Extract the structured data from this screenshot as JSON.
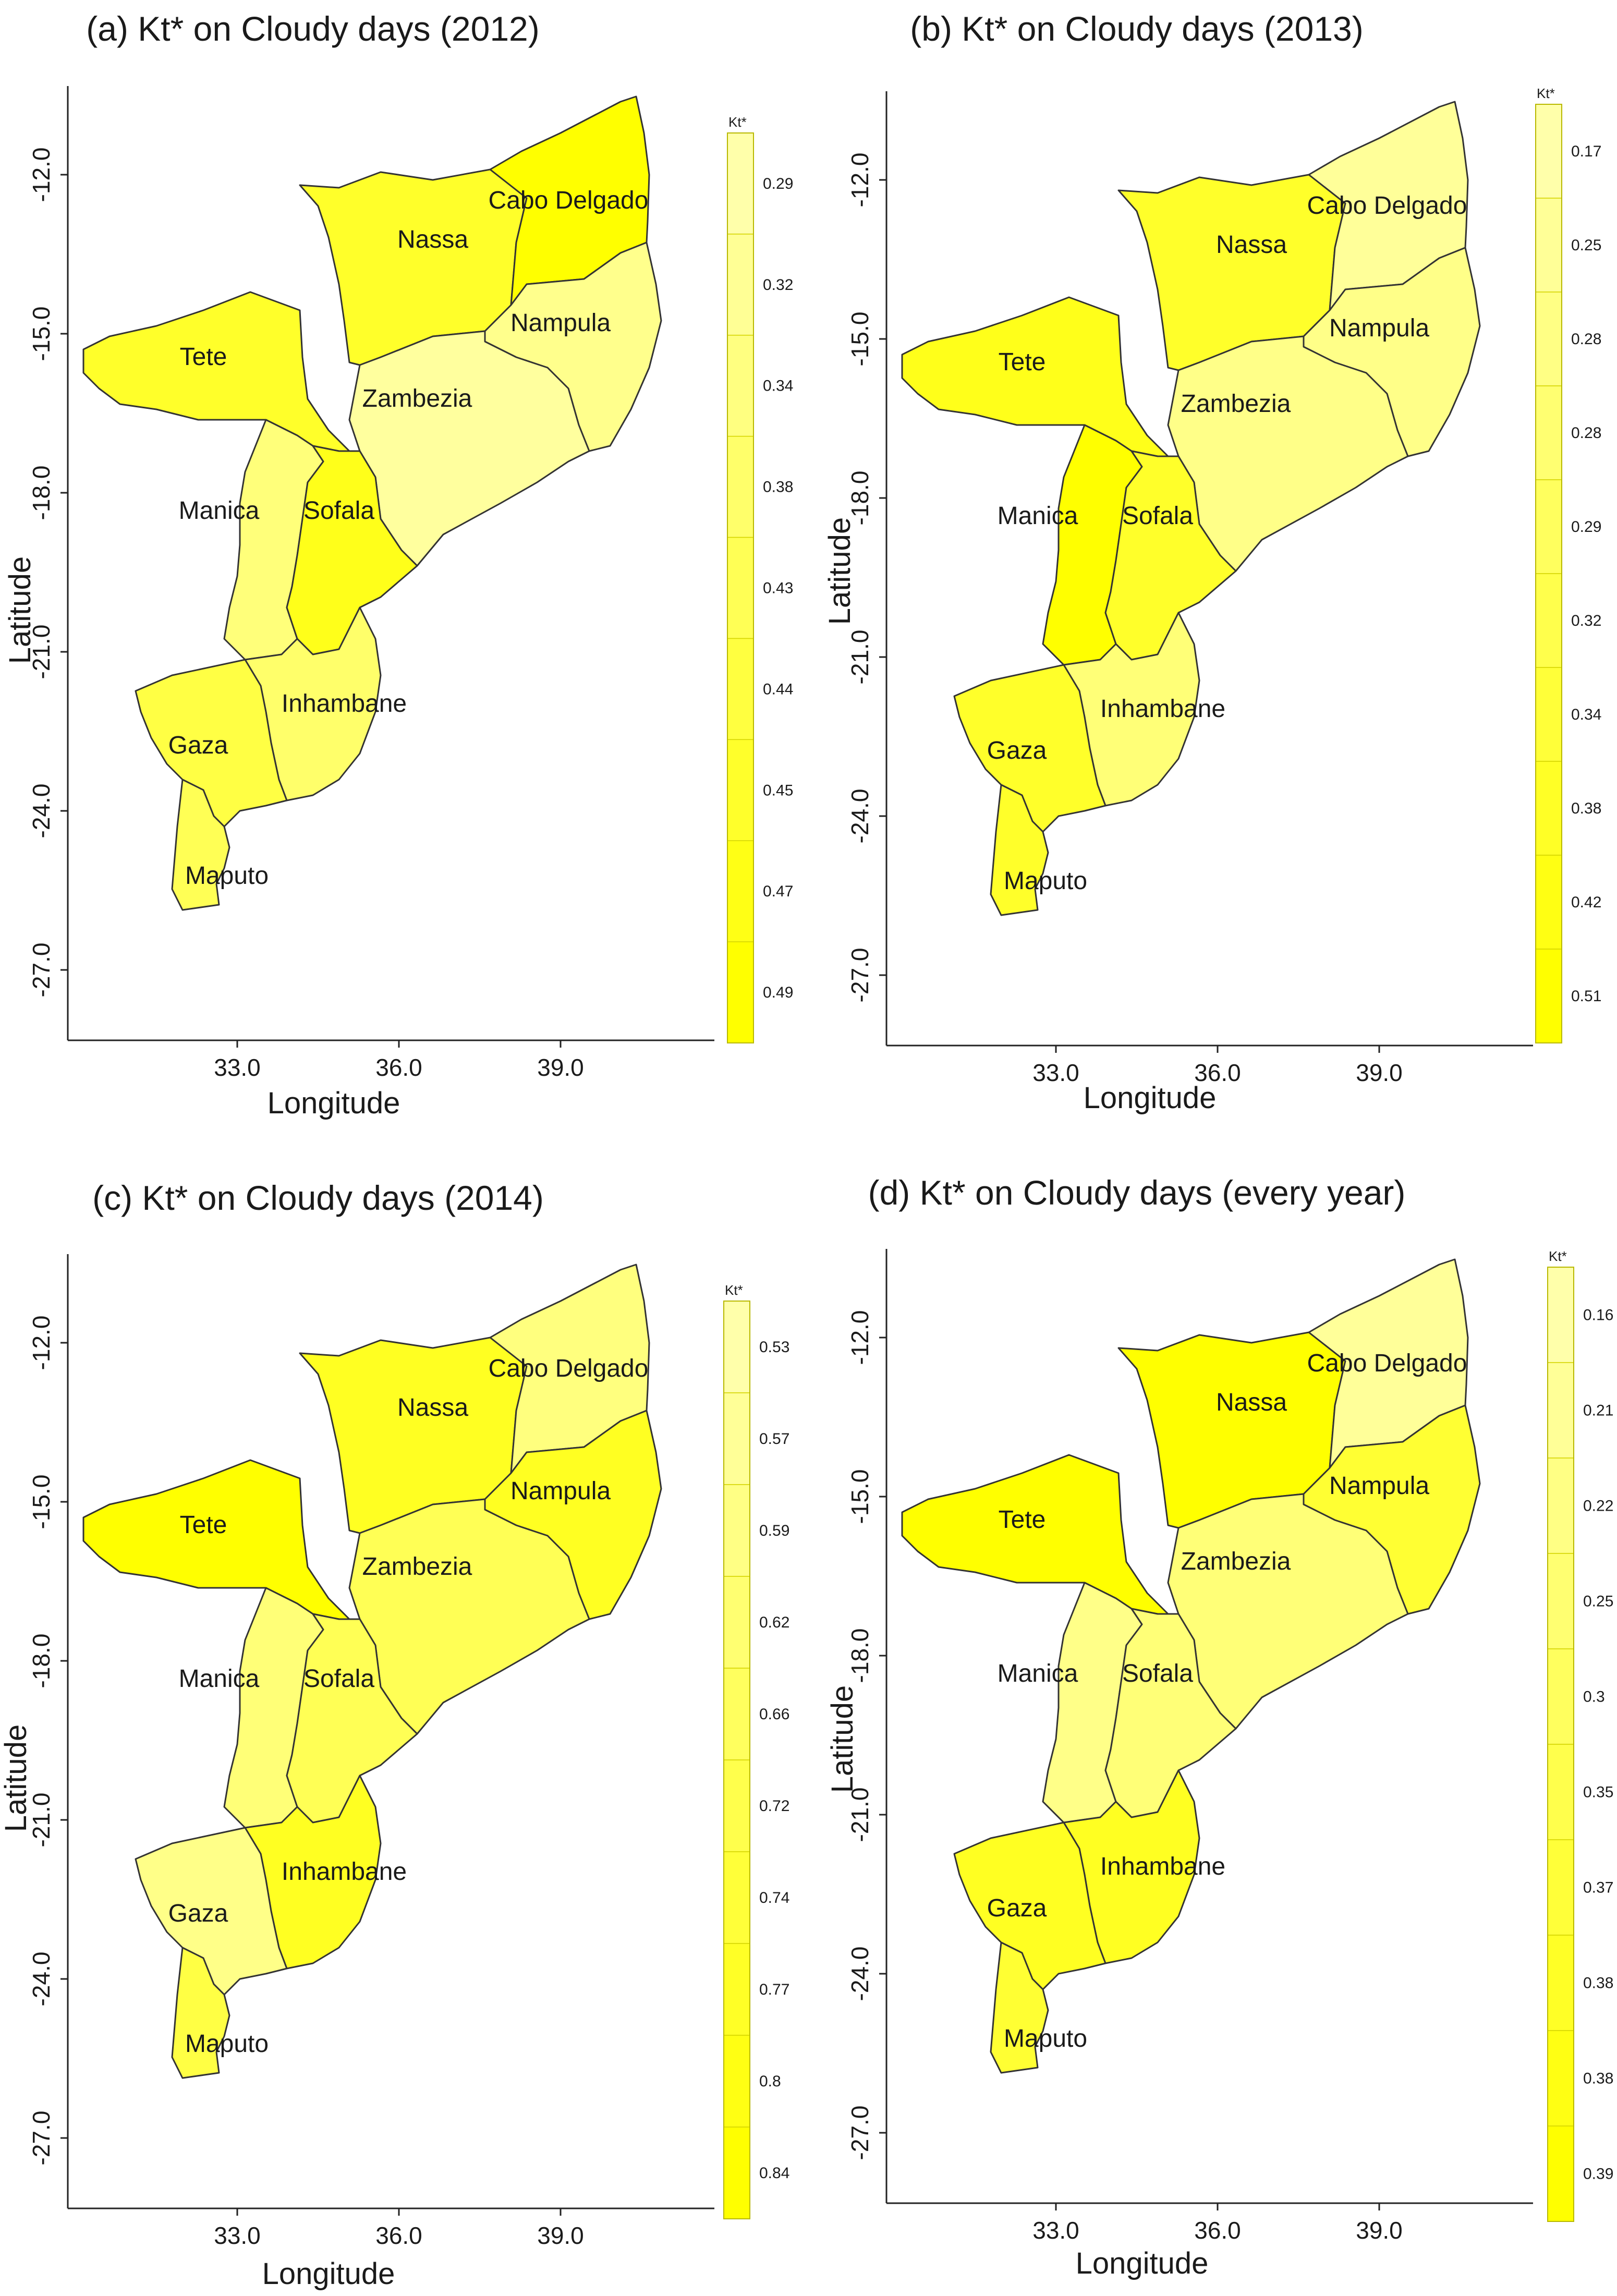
{
  "figure": {
    "xlabel": "Longitude",
    "ylabel": "Latitude",
    "x_ticks": [
      "33.0",
      "36.0",
      "39.0"
    ],
    "y_ticks": [
      "-12.0",
      "-15.0",
      "-18.0",
      "-21.0",
      "-24.0",
      "-27.0"
    ],
    "legend_title": "Kt*"
  },
  "panels": [
    {
      "title": "(a) Kt* on Cloudy days (2012)",
      "legend_values": [
        "0.29",
        "0.32",
        "0.34",
        "0.38",
        "0.43",
        "0.44",
        "0.45",
        "0.47",
        "0.49"
      ],
      "regions": {
        "Cabo Delgado": "#ffff00",
        "Nassa": "#ffff2a",
        "Nampula": "#ffff8c",
        "Tete": "#ffff2a",
        "Zambezia": "#ffff9e",
        "Manica": "#ffff7a",
        "Sofala": "#ffff1a",
        "Inhambane": "#ffff6a",
        "Gaza": "#ffff44",
        "Maputo": "#ffff55"
      }
    },
    {
      "title": "(b) Kt* on Cloudy days (2013)",
      "legend_values": [
        "0.17",
        "0.25",
        "0.28",
        "0.28",
        "0.29",
        "0.32",
        "0.34",
        "0.38",
        "0.42",
        "0.51"
      ],
      "regions": {
        "Cabo Delgado": "#ffff99",
        "Nassa": "#ffff2a",
        "Nampula": "#ffff88",
        "Tete": "#ffff1a",
        "Zambezia": "#ffff88",
        "Manica": "#ffff00",
        "Sofala": "#ffff2a",
        "Inhambane": "#ffff77",
        "Gaza": "#ffff2a",
        "Maputo": "#ffff2a"
      }
    },
    {
      "title": "(c) Kt* on Cloudy days (2014)",
      "legend_values": [
        "0.53",
        "0.57",
        "0.59",
        "0.62",
        "0.66",
        "0.72",
        "0.74",
        "0.77",
        "0.8",
        "0.84"
      ],
      "regions": {
        "Cabo Delgado": "#ffff7e",
        "Nassa": "#ffff22",
        "Nampula": "#ffff22",
        "Tete": "#ffff00",
        "Zambezia": "#ffff55",
        "Manica": "#ffff77",
        "Sofala": "#ffff55",
        "Inhambane": "#ffff22",
        "Gaza": "#ffff88",
        "Maputo": "#ffff44"
      }
    },
    {
      "title": "(d) Kt* on Cloudy days (every year)",
      "legend_values": [
        "0.16",
        "0.21",
        "0.22",
        "0.25",
        "0.3",
        "0.35",
        "0.37",
        "0.38",
        "0.38",
        "0.39"
      ],
      "regions": {
        "Cabo Delgado": "#ffff99",
        "Nassa": "#ffff00",
        "Nampula": "#ffff33",
        "Tete": "#ffff00",
        "Zambezia": "#ffff77",
        "Manica": "#ffff88",
        "Sofala": "#ffff77",
        "Inhambane": "#ffff22",
        "Gaza": "#ffff22",
        "Maputo": "#ffff33"
      }
    }
  ]
}
